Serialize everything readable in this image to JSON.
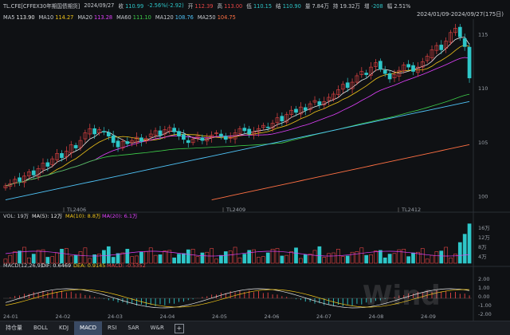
{
  "header": {
    "symbol": "TL.CFE[CFFEX30年期国债期货]",
    "date": "2024/09/27",
    "close_label": "收",
    "close": "110.99",
    "change": "-2.56%(-2.92)",
    "open_label": "开",
    "open": "112.39",
    "high_label": "高",
    "high": "113.00",
    "low_label": "低",
    "low": "110.15",
    "settle_label": "结",
    "settle": "110.90",
    "amount_label": "量",
    "amount": "7.84万",
    "hold_label": "持",
    "hold": "19.32万",
    "diff_label": "增",
    "diff": "-208",
    "amp_label": "幅",
    "amp": "2.51%",
    "range": "2024/01/09-2024/09/27(175日)"
  },
  "ma_legend": [
    {
      "label": "MA5",
      "value": "113.90",
      "color": "#e8e8e8"
    },
    {
      "label": "MA10",
      "value": "114.27",
      "color": "#f0c419"
    },
    {
      "label": "MA20",
      "value": "113.28",
      "color": "#e040fb"
    },
    {
      "label": "MA60",
      "value": "111.10",
      "color": "#3ecf4a"
    },
    {
      "label": "MA120",
      "value": "108.76",
      "color": "#4fc3f7"
    },
    {
      "label": "MA250",
      "value": "104.75",
      "color": "#ff7043"
    }
  ],
  "price_axis": [
    "115",
    "110",
    "105",
    "100"
  ],
  "contract_labels": [
    "TL2406",
    "TL2409",
    "TL2412"
  ],
  "vol_legend": {
    "vol": "VOL: 19万",
    "ma5": "MA(5): 12万",
    "ma10": "MA(10): 8.8万",
    "ma20": "MA(20): 6.1万"
  },
  "vol_axis": [
    "16万",
    "12万",
    "8万",
    "4万"
  ],
  "macd_legend": {
    "title": "MACD(12,26,9)",
    "dif": "DIF: 0.6469",
    "dea": "DEA: 0.9145",
    "macd": "MACD: -0.5352"
  },
  "macd_axis": [
    "2.00",
    "1.00",
    "0.00",
    "-1.00",
    "-2.00"
  ],
  "x_axis": [
    "24-01",
    "24-02",
    "24-03",
    "24-04",
    "24-05",
    "24-06",
    "24-07",
    "24-08",
    "24-09"
  ],
  "tabs": [
    "持仓量",
    "BOLL",
    "KDJ",
    "MACD",
    "RSI",
    "SAR",
    "W&R"
  ],
  "active_tab": "MACD",
  "watermark": "Wind",
  "colors": {
    "up": "#e84545",
    "down": "#2ec7c9",
    "bg": "#0f1114",
    "grid": "#2a2e35"
  },
  "chart_data": {
    "type": "candlestick",
    "ylim": [
      99,
      116
    ],
    "closes": [
      101.0,
      101.2,
      101.6,
      101.4,
      101.9,
      102.3,
      102.0,
      102.6,
      103.1,
      102.8,
      103.5,
      104.0,
      103.6,
      104.2,
      104.8,
      104.5,
      105.2,
      105.9,
      106.3,
      105.8,
      106.2,
      106.0,
      105.6,
      105.0,
      104.6,
      105.1,
      104.9,
      105.2,
      105.5,
      105.1,
      105.4,
      105.8,
      106.1,
      105.7,
      106.2,
      106.4,
      106.0,
      105.6,
      105.3,
      105.0,
      105.3,
      105.6,
      105.2,
      105.4,
      105.7,
      105.9,
      105.6,
      105.3,
      105.5,
      105.9,
      106.3,
      106.1,
      105.8,
      106.0,
      106.3,
      106.6,
      106.4,
      106.8,
      107.3,
      107.0,
      107.6,
      108.0,
      107.8,
      108.3,
      108.0,
      108.6,
      108.9,
      108.5,
      108.8,
      109.2,
      109.5,
      109.9,
      110.4,
      110.1,
      110.6,
      111.2,
      111.6,
      111.3,
      112.0,
      112.4,
      111.8,
      111.4,
      110.9,
      111.3,
      111.7,
      112.2,
      112.0,
      111.6,
      112.0,
      112.5,
      113.0,
      113.6,
      114.0,
      113.6,
      114.4,
      115.2,
      115.6,
      114.8,
      113.9,
      110.99
    ]
  }
}
